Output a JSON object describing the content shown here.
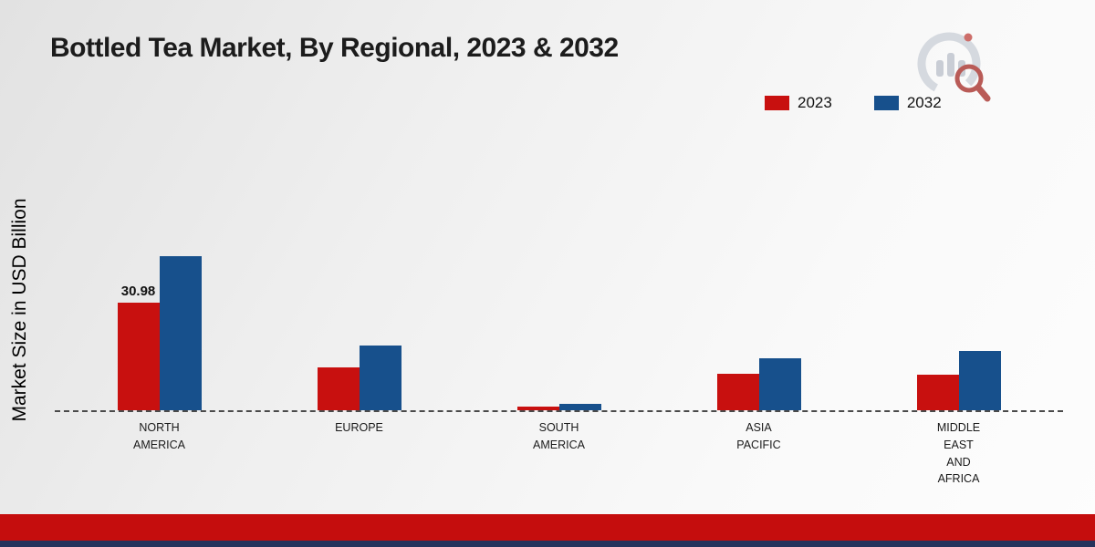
{
  "page": {
    "title": "Bottled Tea Market, By Regional, 2023 & 2032",
    "ylabel": "Market Size in USD Billion"
  },
  "legend": {
    "items": [
      {
        "label": "2023",
        "color": "#c8100f"
      },
      {
        "label": "2032",
        "color": "#17508c"
      }
    ]
  },
  "chart_data": {
    "type": "bar",
    "title": "Bottled Tea Market, By Regional, 2023 & 2032",
    "xlabel": "",
    "ylabel": "Market Size in USD Billion",
    "ylim": [
      0,
      50
    ],
    "grid": false,
    "legend_position": "top-right",
    "baseline_style": "dashed",
    "categories": [
      "North America",
      "Europe",
      "South America",
      "Asia Pacific",
      "Middle East and Africa"
    ],
    "category_label_lines": [
      [
        "NORTH",
        "AMERICA"
      ],
      [
        "EUROPE"
      ],
      [
        "SOUTH",
        "AMERICA"
      ],
      [
        "ASIA",
        "PACIFIC"
      ],
      [
        "MIDDLE",
        "EAST",
        "AND",
        "AFRICA"
      ]
    ],
    "series": [
      {
        "name": "2023",
        "color": "#c8100f",
        "values": [
          30.98,
          12.5,
          1.0,
          10.5,
          10.3
        ],
        "value_labels": [
          "30.98",
          "",
          "",
          "",
          ""
        ]
      },
      {
        "name": "2032",
        "color": "#17508c",
        "values": [
          44.6,
          18.6,
          1.9,
          15.0,
          17.0
        ],
        "value_labels": [
          "",
          "",
          "",
          "",
          ""
        ]
      }
    ]
  },
  "branding": {
    "logo": "market-research-future-logo"
  },
  "footer": {
    "bar_color": "#c50d0d",
    "strip_color": "#25335c"
  }
}
